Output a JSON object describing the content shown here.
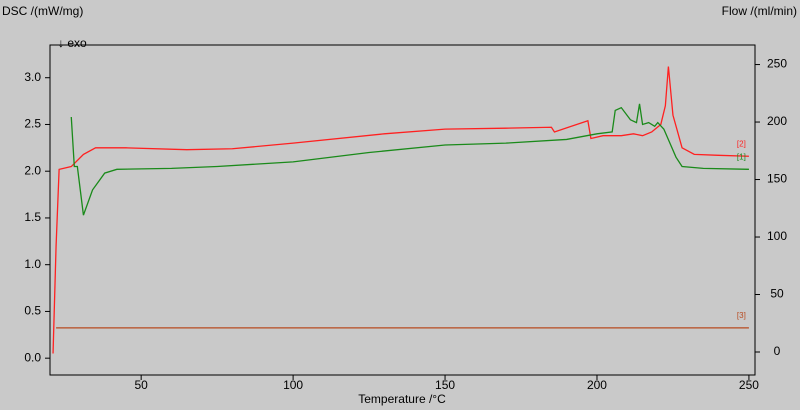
{
  "chart_data": {
    "type": "line",
    "y_label": "DSC /(mW/mg)",
    "y_sublabel": "↓ exo",
    "y2_label": "Flow /(ml/min)",
    "x_label": "Temperature /°C",
    "xlim": [
      20,
      252
    ],
    "xticks": [
      50,
      100,
      150,
      200,
      250
    ],
    "ylim": [
      -0.18,
      3.35
    ],
    "yticks": [
      {
        "value": 0,
        "label": "0.0"
      },
      {
        "value": 0.5,
        "label": "0.5"
      },
      {
        "value": 1,
        "label": "1.0"
      },
      {
        "value": 1.5,
        "label": "1.5"
      },
      {
        "value": 2,
        "label": "2.0"
      },
      {
        "value": 2.5,
        "label": "2.5"
      },
      {
        "value": 3,
        "label": "3.0"
      }
    ],
    "y2lim": [
      -20,
      267
    ],
    "y2ticks": [
      0,
      50,
      100,
      150,
      200,
      250
    ],
    "series": [
      {
        "name": "[2]",
        "color": "#ff2020",
        "x": [
          21,
          22,
          23,
          27,
          31,
          35,
          45,
          65,
          80,
          100,
          130,
          150,
          170,
          185,
          186,
          197,
          198,
          202,
          208,
          212,
          215,
          218,
          221,
          222.5,
          223.5,
          225,
          228,
          232,
          240,
          250
        ],
        "values": [
          0.05,
          1.2,
          2.02,
          2.05,
          2.18,
          2.25,
          2.25,
          2.23,
          2.24,
          2.3,
          2.4,
          2.45,
          2.46,
          2.47,
          2.42,
          2.54,
          2.35,
          2.38,
          2.38,
          2.4,
          2.38,
          2.42,
          2.5,
          2.7,
          3.12,
          2.6,
          2.25,
          2.18,
          2.17,
          2.16
        ]
      },
      {
        "name": "[1]",
        "color": "#1a8a1a",
        "x": [
          27,
          28,
          29,
          31,
          34,
          38,
          42,
          60,
          75,
          100,
          125,
          150,
          170,
          190,
          200,
          205,
          206,
          208,
          211,
          213,
          214,
          215,
          217,
          219,
          220,
          222,
          224,
          226,
          228,
          235,
          250
        ],
        "values": [
          2.58,
          2.05,
          2.05,
          1.53,
          1.8,
          1.98,
          2.02,
          2.03,
          2.05,
          2.1,
          2.2,
          2.28,
          2.3,
          2.34,
          2.4,
          2.42,
          2.65,
          2.68,
          2.55,
          2.52,
          2.72,
          2.5,
          2.52,
          2.48,
          2.52,
          2.45,
          2.3,
          2.15,
          2.05,
          2.03,
          2.02
        ]
      },
      {
        "name": "[3]",
        "color": "#b84a20",
        "axis": "y2",
        "x": [
          22,
          60,
          100,
          150,
          200,
          250
        ],
        "values": [
          21,
          21,
          21,
          21,
          21,
          21
        ]
      }
    ]
  }
}
